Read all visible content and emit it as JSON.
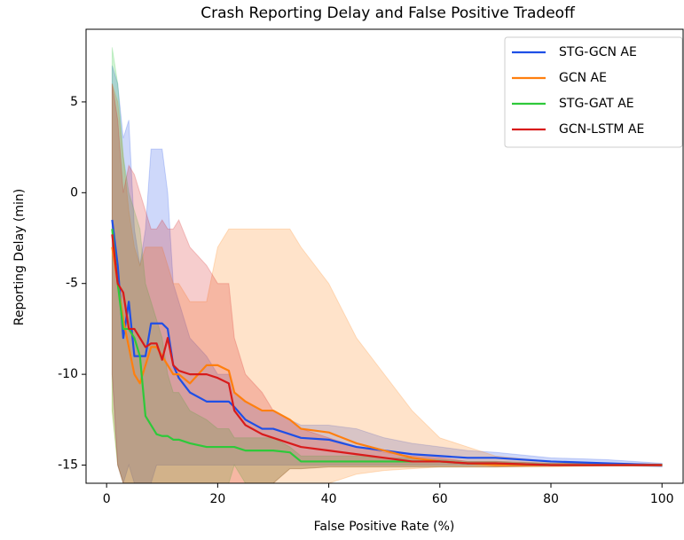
{
  "chart_data": {
    "type": "line",
    "title": "Crash Reporting Delay and False Positive Tradeoff",
    "xlabel": "False Positive Rate (%)",
    "ylabel": "Reporting Delay (min)",
    "x": [
      1,
      2,
      3,
      4,
      5,
      6,
      7,
      8,
      9,
      10,
      11,
      12,
      13,
      15,
      18,
      20,
      22,
      23,
      25,
      28,
      30,
      33,
      35,
      40,
      45,
      50,
      55,
      60,
      65,
      70,
      80,
      90,
      100
    ],
    "series": [
      {
        "name": "STG-GCN AE",
        "color": "#1f4fe6",
        "values": [
          -1.5,
          -4,
          -8,
          -6,
          -9,
          -9,
          -9,
          -7.2,
          -7.2,
          -7.2,
          -7.5,
          -9.5,
          -10.2,
          -11,
          -11.5,
          -11.5,
          -11.5,
          -11.8,
          -12.5,
          -13,
          -13,
          -13.3,
          -13.5,
          -13.6,
          -14,
          -14.2,
          -14.4,
          -14.5,
          -14.6,
          -14.6,
          -14.8,
          -14.9,
          -15
        ],
        "upper": [
          7,
          6,
          3,
          4,
          -2,
          -4,
          -2,
          2.4,
          2.4,
          2.4,
          0,
          -5,
          -6,
          -8,
          -9,
          -10,
          -10,
          -11,
          -11.5,
          -12,
          -12,
          -12.5,
          -12.8,
          -12.8,
          -13,
          -13.5,
          -13.8,
          -14,
          -14.2,
          -14.3,
          -14.6,
          -14.7,
          -14.9
        ],
        "lower": [
          -10,
          -15,
          -16,
          -15,
          -16,
          -16,
          -16,
          -16,
          -15,
          -15,
          -15,
          -15,
          -15,
          -15,
          -15,
          -15,
          -15,
          -15,
          -15,
          -15,
          -15,
          -15,
          -15,
          -15,
          -15,
          -15,
          -15,
          -15,
          -15,
          -15,
          -15,
          -15,
          -15.1
        ]
      },
      {
        "name": "GCN AE",
        "color": "#ff7f0e",
        "values": [
          -3,
          -5,
          -7,
          -8.5,
          -10,
          -10.5,
          -9.5,
          -8.5,
          -8.5,
          -9,
          -9.5,
          -10,
          -10,
          -10.5,
          -9.5,
          -9.5,
          -9.8,
          -11,
          -11.5,
          -12,
          -12,
          -12.5,
          -13,
          -13.2,
          -13.8,
          -14.2,
          -14.6,
          -14.8,
          -14.9,
          -15,
          -15,
          -15,
          -15
        ],
        "upper": [
          6,
          5,
          2,
          -1,
          -3,
          -4,
          -3,
          -3,
          -3,
          -3,
          -4,
          -5,
          -5,
          -6,
          -6,
          -3,
          -2,
          -2,
          -2,
          -2,
          -2,
          -2,
          -3,
          -5,
          -8,
          -10,
          -12,
          -13.5,
          -14,
          -14.5,
          -14.8,
          -14.9,
          -14.95
        ],
        "lower": [
          -12,
          -15,
          -16,
          -16,
          -16,
          -16,
          -16,
          -16,
          -16,
          -16,
          -16,
          -16,
          -16,
          -16,
          -16,
          -16,
          -16,
          -16,
          -16,
          -16,
          -16,
          -16,
          -16,
          -16,
          -15.5,
          -15.3,
          -15.2,
          -15.1,
          -15.1,
          -15.1,
          -15.1,
          -15.05,
          -15.05
        ]
      },
      {
        "name": "STG-GAT AE",
        "color": "#2ec93a",
        "values": [
          -2,
          -5,
          -7.5,
          -7.5,
          -8,
          -9,
          -12.3,
          -12.8,
          -13.3,
          -13.4,
          -13.4,
          -13.6,
          -13.6,
          -13.8,
          -14,
          -14,
          -14,
          -14,
          -14.2,
          -14.2,
          -14.2,
          -14.3,
          -14.8,
          -14.8,
          -14.8,
          -14.8,
          -14.8,
          -14.8,
          -14.9,
          -14.9,
          -15,
          -15,
          -15
        ],
        "upper": [
          8,
          6,
          2,
          0,
          -1,
          -2,
          -5,
          -6,
          -7,
          -8,
          -10,
          -11,
          -11,
          -12,
          -12.5,
          -13,
          -13,
          -13.5,
          -13.5,
          -13.5,
          -13.5,
          -14,
          -14.5,
          -14.5,
          -14.5,
          -14.6,
          -14.6,
          -14.7,
          -14.8,
          -14.8,
          -14.9,
          -14.9,
          -14.95
        ],
        "lower": [
          -12,
          -15,
          -16,
          -16,
          -16,
          -16,
          -16,
          -16,
          -16,
          -16,
          -16,
          -16,
          -16,
          -16,
          -16,
          -16,
          -16,
          -15,
          -16,
          -16,
          -16,
          -15.2,
          -15.2,
          -15.1,
          -15.1,
          -15.1,
          -15.1,
          -15.1,
          -15.1,
          -15.1,
          -15.05,
          -15.05,
          -15.05
        ]
      },
      {
        "name": "GCN-LSTM AE",
        "color": "#d81b1b",
        "values": [
          -2.3,
          -5,
          -5.5,
          -7.5,
          -7.5,
          -8,
          -8.5,
          -8.3,
          -8.3,
          -9.2,
          -8,
          -9.5,
          -9.8,
          -10,
          -10,
          -10.2,
          -10.5,
          -12,
          -12.8,
          -13.3,
          -13.5,
          -13.8,
          -14,
          -14.2,
          -14.4,
          -14.6,
          -14.8,
          -14.8,
          -14.9,
          -14.9,
          -15,
          -15,
          -15
        ],
        "upper": [
          6,
          4,
          0,
          1.5,
          1,
          0,
          -1,
          -2,
          -2,
          -1.5,
          -2,
          -2,
          -1.5,
          -3,
          -4,
          -5,
          -5,
          -8,
          -10,
          -11,
          -12,
          -12.5,
          -13,
          -13.5,
          -14,
          -14.3,
          -14.5,
          -14.6,
          -14.8,
          -14.8,
          -14.9,
          -14.9,
          -14.95
        ],
        "lower": [
          -10,
          -15,
          -16,
          -16,
          -16,
          -16,
          -16,
          -16,
          -16,
          -16,
          -16,
          -16,
          -16,
          -16,
          -16,
          -16,
          -16,
          -16,
          -16,
          -16,
          -16,
          -15.2,
          -15.2,
          -15.1,
          -15.1,
          -15.1,
          -15.1,
          -15.1,
          -15.1,
          -15.1,
          -15.05,
          -15.05,
          -15.05
        ]
      }
    ],
    "xlim": [
      -3.7,
      103.8
    ],
    "xticks": [
      0,
      20,
      40,
      60,
      80,
      100
    ],
    "ylim": [
      -16,
      9
    ],
    "yticks": [
      -15,
      -10,
      -5,
      0,
      5
    ],
    "grid": false,
    "legend": "upper right",
    "band_opacity": 0.22
  }
}
